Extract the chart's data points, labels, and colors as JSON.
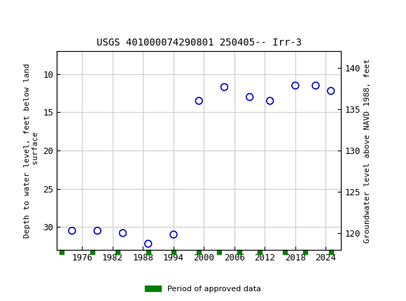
{
  "title": "USGS 401000074290801 250405-- Irr-3",
  "usgs_banner_color": "#1a6b3c",
  "ylabel_left": "Depth to water level, feet below land\n surface",
  "ylabel_right": "Groundwater level above NAVD 1988, feet",
  "xlim": [
    1971,
    2027
  ],
  "ylim_left": [
    33,
    7
  ],
  "ylim_right": [
    118,
    142
  ],
  "yticks_left": [
    10,
    15,
    20,
    25,
    30
  ],
  "yticks_right": [
    120,
    125,
    130,
    135,
    140
  ],
  "xticks": [
    1976,
    1982,
    1988,
    1994,
    2000,
    2006,
    2012,
    2018,
    2024
  ],
  "scatter_x": [
    1974,
    1979,
    1984,
    1989,
    1994,
    1999,
    2004,
    2009,
    2013,
    2018,
    2022,
    2025
  ],
  "scatter_y": [
    30.5,
    30.5,
    30.8,
    32.2,
    31.0,
    13.5,
    11.7,
    13.0,
    13.5,
    11.5,
    11.5,
    12.2
  ],
  "scatter_color": "#0000cc",
  "marker_size": 7,
  "grid_color": "#cccccc",
  "green_bar_x": [
    1972,
    1978,
    1983,
    1989,
    1994,
    1999,
    2003,
    2007,
    2011,
    2016,
    2020,
    2025
  ],
  "green_bar_color": "#008000",
  "legend_label": "Period of approved data",
  "background_color": "#ffffff",
  "plot_bg": "#ffffff"
}
